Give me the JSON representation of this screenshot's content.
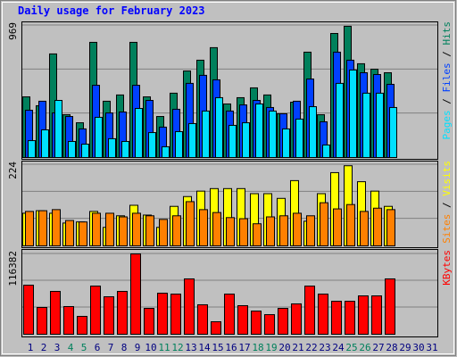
{
  "title": "Daily usage for February 2023",
  "chart_data": [
    {
      "type": "bar",
      "legend_separator": " / ",
      "ylim": [
        0,
        969
      ],
      "yticks": [
        969
      ],
      "grid_divisions": 3,
      "series": [
        {
          "name": "Hits",
          "color": "#00805c",
          "values": [
            445,
            380,
            760,
            314,
            255,
            845,
            413,
            459,
            845,
            445,
            301,
            472,
            635,
            714,
            806,
            393,
            439,
            511,
            459,
            321,
            406,
            773,
            314,
            910,
            963,
            688,
            648,
            622,
            null,
            null,
            null
          ]
        },
        {
          "name": "Files",
          "color": "#0040ff",
          "values": [
            347,
            413,
            327,
            301,
            210,
            530,
            327,
            334,
            530,
            419,
            223,
            354,
            544,
            603,
            570,
            341,
            386,
            419,
            367,
            321,
            413,
            576,
            262,
            773,
            714,
            622,
            609,
            537,
            null,
            null,
            null
          ]
        },
        {
          "name": "Pages",
          "color": "#00e0ff",
          "values": [
            124,
            203,
            419,
            118,
            98,
            295,
            138,
            118,
            360,
            183,
            79,
            190,
            249,
            341,
            439,
            236,
            255,
            393,
            341,
            210,
            282,
            373,
            92,
            544,
            642,
            472,
            472,
            367,
            null,
            null,
            null
          ]
        }
      ]
    },
    {
      "type": "bar",
      "legend_separator": " / ",
      "ylim": [
        0,
        224
      ],
      "yticks": [
        224
      ],
      "grid_divisions": 3,
      "series": [
        {
          "name": "Visits",
          "color": "#ffff00",
          "values": [
            90,
            97,
            90,
            63,
            66,
            95,
            51,
            83,
            112,
            85,
            51,
            109,
            136,
            151,
            158,
            158,
            158,
            144,
            144,
            131,
            180,
            68,
            144,
            202,
            221,
            177,
            151,
            109,
            null,
            null,
            null
          ]
        },
        {
          "name": "Sites",
          "color": "#ff8000",
          "values": [
            95,
            97,
            100,
            70,
            66,
            90,
            90,
            80,
            90,
            83,
            73,
            83,
            122,
            100,
            92,
            78,
            75,
            61,
            80,
            83,
            90,
            83,
            119,
            102,
            114,
            95,
            104,
            100,
            null,
            null,
            null
          ]
        }
      ]
    },
    {
      "type": "bar",
      "ylim": [
        0,
        116382
      ],
      "yticks": [
        116382
      ],
      "grid_divisions": 3,
      "categories": [
        "1",
        "2",
        "3",
        "4",
        "5",
        "6",
        "7",
        "8",
        "9",
        "10",
        "11",
        "12",
        "13",
        "14",
        "15",
        "16",
        "17",
        "18",
        "19",
        "20",
        "21",
        "22",
        "23",
        "24",
        "25",
        "26",
        "27",
        "28",
        "29",
        "30",
        "31"
      ],
      "category_colors": [
        "#000080",
        "#000080",
        "#000080",
        "#00805c",
        "#00805c",
        "#000080",
        "#000080",
        "#000080",
        "#000080",
        "#000080",
        "#00805c",
        "#00805c",
        "#000080",
        "#000080",
        "#000080",
        "#000080",
        "#000080",
        "#00805c",
        "#00805c",
        "#000080",
        "#000080",
        "#000080",
        "#000080",
        "#000080",
        "#00805c",
        "#00805c",
        "#000080",
        "#000080",
        "#000080",
        "#000080",
        "#000080"
      ],
      "series": [
        {
          "name": "KBytes",
          "color": "#ff0000",
          "values": [
            71100,
            38800,
            62100,
            40100,
            25900,
            69800,
            54300,
            62100,
            116382,
            37500,
            59500,
            58200,
            80200,
            42700,
            18100,
            58200,
            41400,
            33600,
            28400,
            37500,
            44000,
            69800,
            58200,
            47800,
            47800,
            55600,
            55600,
            80200,
            null,
            null,
            null
          ]
        }
      ]
    }
  ]
}
